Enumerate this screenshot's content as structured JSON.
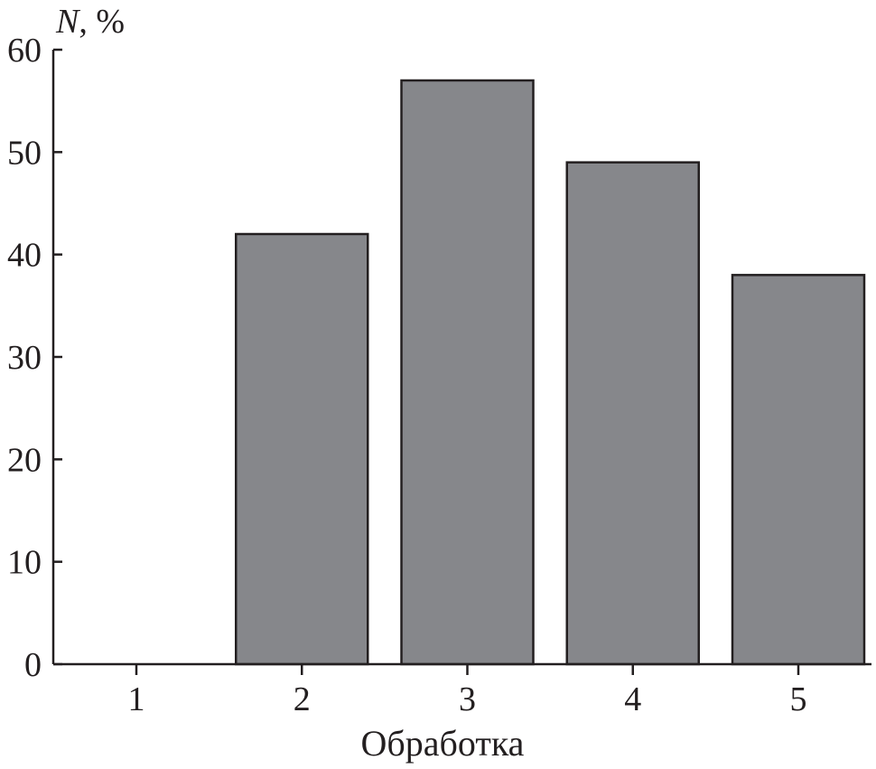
{
  "chart_data": {
    "type": "bar",
    "categories": [
      "1",
      "2",
      "3",
      "4",
      "5"
    ],
    "values": [
      0,
      42,
      57,
      49,
      38
    ],
    "title": "",
    "ylabel": "N, %",
    "ylabel_italic": "N",
    "ylabel_unit": ", %",
    "xlabel": "Обработка",
    "ylim": [
      0,
      60
    ],
    "yticks": [
      "0",
      "10",
      "20",
      "30",
      "40",
      "50",
      "60"
    ],
    "bar_color": "#86878b",
    "grid": false,
    "legend": "none"
  }
}
